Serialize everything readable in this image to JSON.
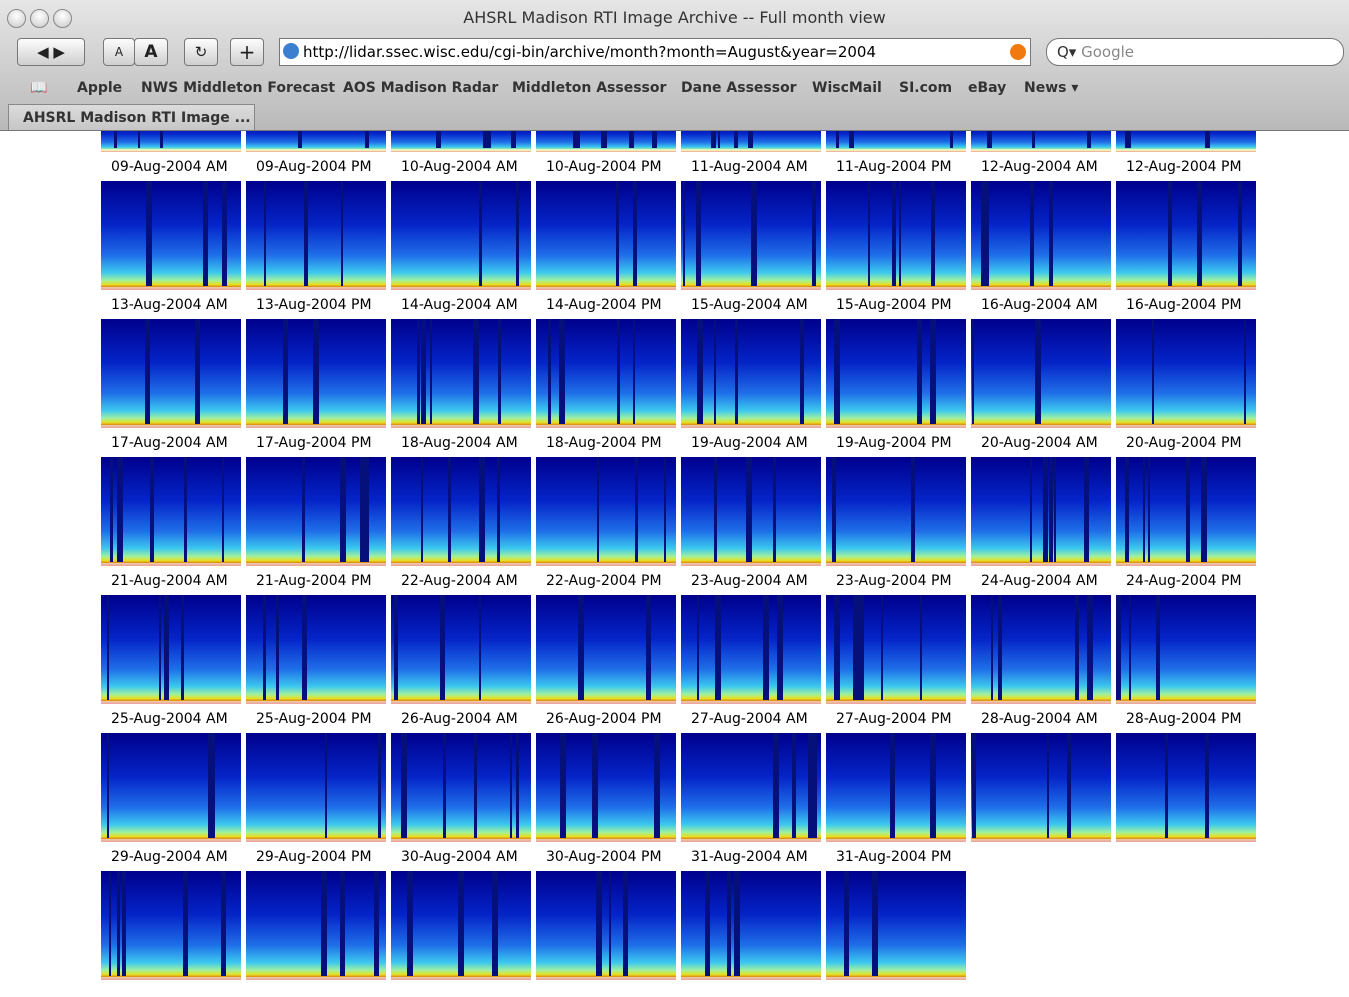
{
  "window": {
    "title": "AHSRL Madison RTI Image Archive -- Full month view"
  },
  "toolbar": {
    "text_buttons": [
      "A",
      "A"
    ],
    "url": "http://lidar.ssec.wisc.edu/cgi-bin/archive/month?month=August&year=2004",
    "search_placeholder": "Google"
  },
  "bookmarks": [
    "Apple",
    "NWS Middleton Forecast",
    "AOS Madison Radar",
    "Middleton Assessor",
    "Dane Assessor",
    "WiscMail",
    "SI.com",
    "eBay",
    "News"
  ],
  "tab": {
    "title": "AHSRL Madison RTI Image ..."
  },
  "archive": {
    "labels": [
      "09-Aug-2004 AM",
      "09-Aug-2004 PM",
      "10-Aug-2004 AM",
      "10-Aug-2004 PM",
      "11-Aug-2004 AM",
      "11-Aug-2004 PM",
      "12-Aug-2004 AM",
      "12-Aug-2004 PM",
      "13-Aug-2004 AM",
      "13-Aug-2004 PM",
      "14-Aug-2004 AM",
      "14-Aug-2004 PM",
      "15-Aug-2004 AM",
      "15-Aug-2004 PM",
      "16-Aug-2004 AM",
      "16-Aug-2004 PM",
      "17-Aug-2004 AM",
      "17-Aug-2004 PM",
      "18-Aug-2004 AM",
      "18-Aug-2004 PM",
      "19-Aug-2004 AM",
      "19-Aug-2004 PM",
      "20-Aug-2004 AM",
      "20-Aug-2004 PM",
      "21-Aug-2004 AM",
      "21-Aug-2004 PM",
      "22-Aug-2004 AM",
      "22-Aug-2004 PM",
      "23-Aug-2004 AM",
      "23-Aug-2004 PM",
      "24-Aug-2004 AM",
      "24-Aug-2004 PM",
      "25-Aug-2004 AM",
      "25-Aug-2004 PM",
      "26-Aug-2004 AM",
      "26-Aug-2004 PM",
      "27-Aug-2004 AM",
      "27-Aug-2004 PM",
      "28-Aug-2004 AM",
      "28-Aug-2004 PM",
      "29-Aug-2004 AM",
      "29-Aug-2004 PM",
      "30-Aug-2004 AM",
      "30-Aug-2004 PM",
      "31-Aug-2004 AM",
      "31-Aug-2004 PM"
    ]
  }
}
